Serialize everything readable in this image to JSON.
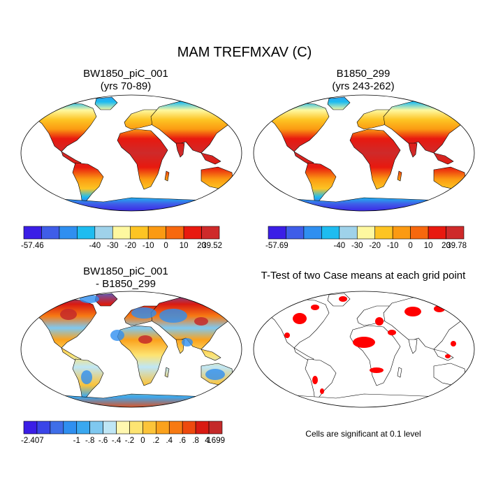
{
  "title": "MAM TREFMXAV (C)",
  "panels": [
    {
      "id": "case1",
      "title_lines": [
        "BW1850_piC_001",
        "(yrs 70-89)"
      ],
      "colorbar": {
        "colors": [
          "#3b1ee6",
          "#3f5de8",
          "#2f8ff0",
          "#1ebcf0",
          "#9fd2ea",
          "#fef8a0",
          "#fdc423",
          "#fb9a12",
          "#f7680e",
          "#e8190f",
          "#ce2a2a"
        ],
        "min_label": "-57.46",
        "max_label": "39.52",
        "tick_labels": [
          "-40",
          "-30",
          "-20",
          "-10",
          "0",
          "10",
          "20"
        ]
      }
    },
    {
      "id": "case2",
      "title_lines": [
        "B1850_299",
        "(yrs 243-262)"
      ],
      "colorbar": {
        "colors": [
          "#3b1ee6",
          "#3f5de8",
          "#2f8ff0",
          "#1ebcf0",
          "#9fd2ea",
          "#fef8a0",
          "#fdc423",
          "#fb9a12",
          "#f7680e",
          "#e8190f",
          "#ce2a2a"
        ],
        "min_label": "-57.69",
        "max_label": "39.78",
        "tick_labels": [
          "-40",
          "-30",
          "-20",
          "-10",
          "0",
          "10",
          "20"
        ]
      }
    },
    {
      "id": "difference",
      "title_lines": [
        "BW1850_piC_001",
        "- B1850_299"
      ],
      "colorbar": {
        "colors": [
          "#3b1ee6",
          "#3a45e8",
          "#3f6ee8",
          "#2f8ff0",
          "#3aa8f0",
          "#7fc8f0",
          "#bfe6f5",
          "#fff7b0",
          "#fde472",
          "#fcc43a",
          "#fba21d",
          "#f77a13",
          "#ee4a0e",
          "#d91a12",
          "#c42a2a"
        ],
        "min_label": "-2.407",
        "max_label": "4.699",
        "tick_labels": [
          "-1",
          "-.8",
          "-.6",
          "-.4",
          "-.2",
          "0",
          ".2",
          ".4",
          ".6",
          ".8",
          "1"
        ]
      }
    },
    {
      "id": "ttest",
      "title_lines": [
        "T-Test of two Case means at each grid point"
      ],
      "footnote": "Cells are significant at 0.1 level",
      "sig_color": "#ff0000"
    }
  ]
}
